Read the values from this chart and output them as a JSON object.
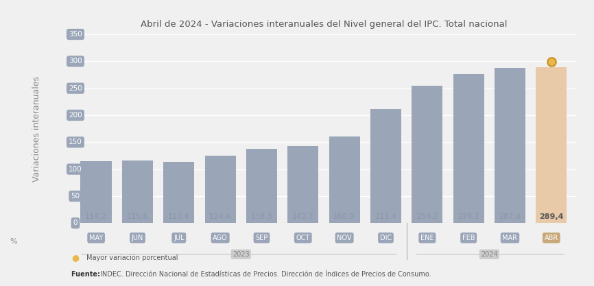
{
  "title": "Abril de 2024 - Variaciones interanuales del Nivel general del IPC. Total nacional",
  "ylabel": "Variaciones interanuales",
  "xlabel_percent": "%",
  "categories": [
    "MAY",
    "JUN",
    "JUL",
    "AGO",
    "SEP",
    "OCT",
    "NOV",
    "DIC",
    "ENE",
    "FEB",
    "MAR",
    "ABR"
  ],
  "values": [
    114.2,
    115.6,
    113.4,
    124.4,
    138.3,
    142.7,
    160.9,
    211.4,
    254.2,
    276.2,
    287.9,
    289.4
  ],
  "bar_color_regular": "#9aa5b8",
  "bar_color_highlight": "#e8c9a8",
  "bar_color_highlight_idx": 11,
  "ylim": [
    0,
    350
  ],
  "yticks": [
    0,
    50,
    100,
    150,
    200,
    250,
    300,
    350
  ],
  "value_label_color_regular": "#8898a8",
  "value_label_color_highlight": "#555555",
  "tick_label_color_regular": "#ffffff",
  "tick_label_bgcolor_regular": "#9aa5b8",
  "tick_label_bgcolor_highlight": "#c8a878",
  "ytick_label_bgcolor": "#9aa5b8",
  "background_color": "#f0f0f0",
  "plot_bg_color": "#f0f0f0",
  "grid_color": "#ffffff",
  "title_fontsize": 9.5,
  "ylabel_fontsize": 9,
  "value_fontsize": 8,
  "tick_fontsize": 7,
  "ytick_fontsize": 7.5,
  "footer_text": "Fuente: INDEC. Dirección Nacional de Estadísticas de Precios. Dirección de Índices de Precios de Consumo.",
  "legend_text": "Mayor variación porcentual",
  "legend_circle_color": "#e8b84b",
  "legend_circle_edge": "#c89020",
  "year_separator_color": "#aaaaaa",
  "year_label_color": "#888888",
  "year_label_bgcolor": "#cccccc"
}
